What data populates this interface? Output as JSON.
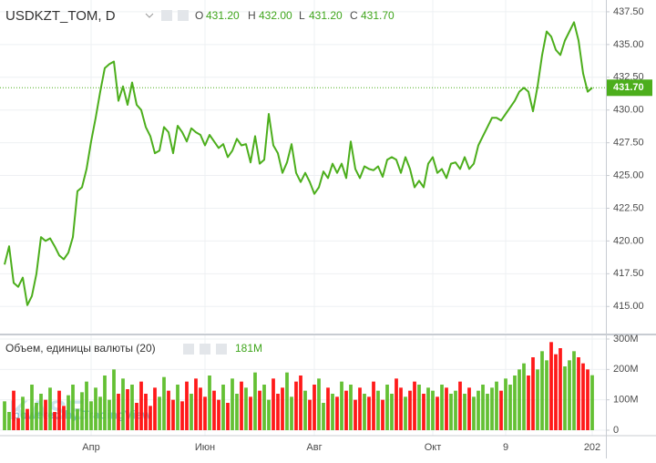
{
  "chart_data": [
    {
      "type": "line",
      "title": "USDKZT_TOM, D",
      "ohlc": {
        "open_label": "O",
        "open": "431.20",
        "high_label": "H",
        "high": "432.00",
        "low_label": "L",
        "low": "431.20",
        "close_label": "C"
      },
      "last_price": {
        "value": 431.7,
        "label": "431.70"
      },
      "color": "#4cae1c",
      "grid": true,
      "watermark": {
        "logo": "KASE",
        "credit": "powered by TradingView"
      },
      "categories": [
        null,
        null,
        null,
        null,
        null,
        null,
        null,
        null,
        null,
        null,
        null,
        null,
        null,
        null,
        null,
        null,
        null,
        null,
        null,
        "Апр",
        null,
        null,
        null,
        null,
        null,
        null,
        null,
        null,
        null,
        null,
        null,
        null,
        null,
        null,
        null,
        null,
        null,
        null,
        null,
        null,
        null,
        null,
        null,
        null,
        "Июн",
        null,
        null,
        null,
        null,
        null,
        null,
        null,
        null,
        null,
        null,
        null,
        null,
        null,
        null,
        null,
        null,
        null,
        null,
        null,
        null,
        null,
        null,
        null,
        "Авг",
        null,
        null,
        null,
        null,
        null,
        null,
        null,
        null,
        null,
        null,
        null,
        null,
        null,
        null,
        null,
        null,
        null,
        null,
        null,
        null,
        null,
        null,
        null,
        null,
        null,
        "Окт",
        null,
        null,
        null,
        null,
        null,
        null,
        null,
        null,
        null,
        null,
        null,
        null,
        null,
        null,
        null,
        "9",
        null,
        null,
        null,
        null,
        null,
        null,
        null,
        null,
        null,
        null,
        null,
        null,
        null,
        null,
        null,
        null,
        null,
        null,
        "202"
      ],
      "values": [
        418.2,
        419.6,
        416.8,
        416.5,
        417.2,
        415.1,
        415.8,
        417.5,
        420.3,
        420,
        420.2,
        419.6,
        418.9,
        418.6,
        419.1,
        420.3,
        423.8,
        424.1,
        425.5,
        427.6,
        429.4,
        431.4,
        433.2,
        433.5,
        433.7,
        430.7,
        431.8,
        430.4,
        432.1,
        430.4,
        430,
        428.7,
        428,
        426.7,
        426.9,
        428.7,
        428.3,
        426.7,
        428.8,
        428.3,
        427.6,
        428.6,
        428.3,
        428.1,
        427.3,
        428.1,
        427.6,
        427.1,
        427.4,
        426.4,
        426.9,
        427.8,
        427.3,
        427.4,
        426,
        428,
        425.9,
        426.2,
        429.7,
        427.3,
        426.7,
        425.2,
        426,
        427.4,
        425.2,
        424.5,
        425.2,
        424.5,
        423.6,
        424.1,
        425.3,
        424.8,
        425.9,
        425.2,
        425.9,
        424.8,
        427.6,
        425.5,
        424.8,
        425.7,
        425.5,
        425.4,
        425.7,
        424.9,
        426.2,
        426.4,
        426.2,
        425.2,
        426.4,
        425.5,
        424.1,
        424.6,
        424.1,
        425.9,
        426.4,
        425.2,
        425.5,
        424.8,
        425.9,
        426,
        425.5,
        426.4,
        425.5,
        425.9,
        427.3,
        428,
        428.7,
        429.4,
        429.4,
        429.2,
        429.7,
        430.2,
        430.7,
        431.4,
        431.7,
        431.4,
        429.9,
        431.8,
        434.2,
        436,
        435.6,
        434.6,
        434.2,
        435.3,
        436,
        436.7,
        435.3,
        432.8,
        431.4,
        431.7
      ],
      "ylim": [
        413,
        438.4
      ],
      "yticks": [
        {
          "value": 415,
          "label": "415.00"
        },
        {
          "value": 417.5,
          "label": "417.50"
        },
        {
          "value": 420,
          "label": "420.00"
        },
        {
          "value": 422.5,
          "label": "422.50"
        },
        {
          "value": 425,
          "label": "425.00"
        },
        {
          "value": 427.5,
          "label": "427.50"
        },
        {
          "value": 430,
          "label": "430.00"
        },
        {
          "value": 432.5,
          "label": "432.50"
        },
        {
          "value": 435,
          "label": "435.00"
        },
        {
          "value": 437.5,
          "label": "437.50"
        }
      ]
    },
    {
      "type": "bar",
      "title": "Объем, единицы валюты (20)",
      "last_label": "181M",
      "up_color": "#53b91e",
      "down_color": "#ff0000",
      "grid": true,
      "values": [
        95,
        60,
        130,
        40,
        110,
        70,
        150,
        90,
        120,
        100,
        140,
        60,
        130,
        80,
        115,
        150,
        70,
        125,
        160,
        95,
        140,
        110,
        180,
        100,
        200,
        120,
        170,
        135,
        150,
        90,
        160,
        120,
        80,
        140,
        110,
        175,
        130,
        100,
        150,
        95,
        160,
        120,
        170,
        140,
        110,
        180,
        130,
        100,
        150,
        90,
        170,
        120,
        160,
        140,
        110,
        190,
        130,
        150,
        100,
        170,
        120,
        140,
        190,
        110,
        160,
        180,
        130,
        100,
        150,
        170,
        90,
        140,
        120,
        110,
        160,
        130,
        150,
        100,
        140,
        120,
        110,
        160,
        130,
        100,
        150,
        120,
        170,
        140,
        110,
        130,
        160,
        150,
        120,
        140,
        130,
        110,
        150,
        140,
        120,
        130,
        160,
        120,
        140,
        110,
        130,
        150,
        120,
        140,
        160,
        130,
        170,
        150,
        180,
        200,
        220,
        180,
        240,
        200,
        260,
        230,
        290,
        250,
        270,
        210,
        230,
        260,
        240,
        220,
        200,
        181
      ],
      "ylim": [
        -18,
        312
      ],
      "yticks": [
        0,
        {
          "value": 100,
          "label": "100M"
        },
        {
          "value": 200,
          "label": "200M"
        },
        {
          "value": 300,
          "label": "300M"
        }
      ]
    }
  ]
}
